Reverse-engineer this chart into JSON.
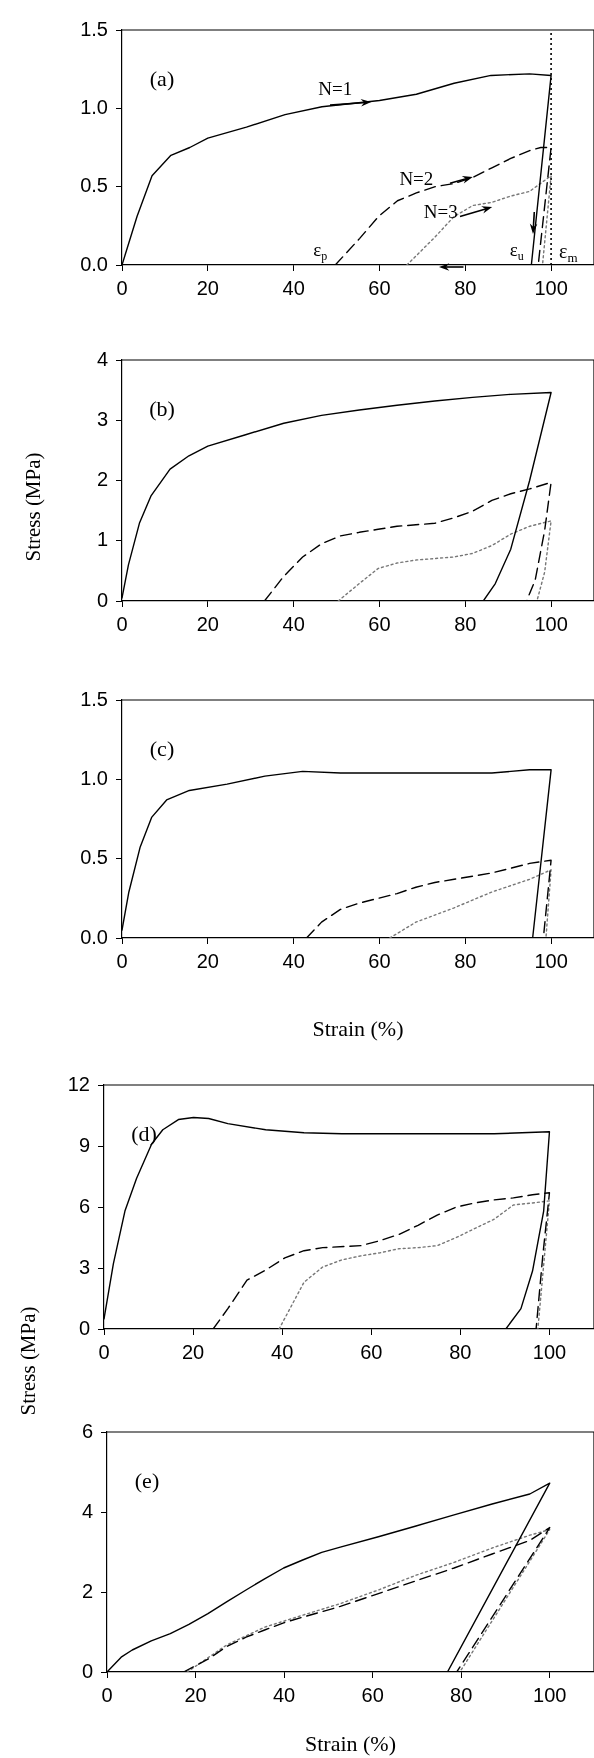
{
  "chart_data": [
    {
      "type": "line",
      "title": "(a)",
      "xlim": [
        0,
        110
      ],
      "xticks": [
        0,
        20,
        40,
        60,
        80,
        100
      ],
      "ylim": [
        0,
        1.5
      ],
      "yticks": [
        {
          "value": 0,
          "label": "0.0"
        },
        {
          "value": 0.5,
          "label": "0.5"
        },
        {
          "value": 1,
          "label": "1.0"
        },
        {
          "value": 1.5,
          "label": "1.5"
        }
      ],
      "grid": false,
      "marker": "none",
      "series": [
        {
          "color": "#000000",
          "line_style": "solid",
          "x": [
            0,
            3.5,
            7,
            11.4,
            15.8,
            20,
            29,
            38,
            46.6,
            60,
            68.6,
            77.4,
            86,
            95,
            100,
            95.4
          ],
          "values": [
            0,
            0.31,
            0.57,
            0.7,
            0.75,
            0.81,
            0.88,
            0.96,
            1.01,
            1.05,
            1.09,
            1.16,
            1.21,
            1.22,
            1.21,
            0
          ]
        },
        {
          "color": "#000000",
          "line_style": "dashed",
          "x": [
            49.7,
            55.4,
            59.8,
            64.2,
            68.6,
            73,
            77.4,
            81.8,
            86.2,
            90.6,
            95,
            97.6,
            100,
            97
          ],
          "values": [
            0,
            0.17,
            0.31,
            0.41,
            0.46,
            0.5,
            0.52,
            0.56,
            0.62,
            0.68,
            0.73,
            0.75,
            0.75,
            0
          ]
        },
        {
          "color": "#777777",
          "line_style": "dotted",
          "x": [
            66.4,
            73,
            77.4,
            81.8,
            86.2,
            90.6,
            95,
            100,
            98
          ],
          "values": [
            0,
            0.18,
            0.31,
            0.38,
            0.4,
            0.44,
            0.47,
            0.57,
            0
          ]
        }
      ],
      "ref_lines": [
        {
          "axis": "x",
          "value": 100,
          "label": "ε$_{m}$",
          "line_style": "dotted"
        }
      ],
      "annotations": [
        "N=1",
        "N=2",
        "N=3",
        "ε$_{p}$",
        "ε$_{u}$"
      ]
    },
    {
      "type": "line",
      "title": "(b)",
      "ylabel": "Stress (MPa)",
      "xlim": [
        0,
        110
      ],
      "xticks": [
        0,
        20,
        40,
        60,
        80,
        100
      ],
      "ylim": [
        0,
        4
      ],
      "yticks": [
        0,
        1,
        2,
        3,
        4
      ],
      "grid": false,
      "marker": "none",
      "series": [
        {
          "color": "#000000",
          "line_style": "solid",
          "x": [
            0,
            1.5,
            4.1,
            6.8,
            11.2,
            15.6,
            20,
            28.8,
            37.7,
            46.5,
            55.3,
            64.1,
            72.9,
            81.7,
            90.6,
            100,
            95,
            90.6,
            87,
            84.2
          ],
          "values": [
            0.05,
            0.6,
            1.3,
            1.75,
            2.19,
            2.41,
            2.57,
            2.76,
            2.95,
            3.08,
            3.17,
            3.25,
            3.32,
            3.38,
            3.43,
            3.46,
            2,
            0.86,
            0.29,
            0
          ]
        },
        {
          "color": "#000000",
          "line_style": "dashed",
          "x": [
            33.2,
            37.7,
            42.1,
            46.5,
            50.9,
            55.3,
            59.7,
            64.1,
            72.9,
            77.3,
            81.7,
            86.2,
            90.6,
            95,
            100,
            98.5,
            96.3,
            94.3
          ],
          "values": [
            0,
            0.41,
            0.73,
            0.95,
            1.08,
            1.14,
            1.19,
            1.24,
            1.29,
            1.38,
            1.49,
            1.67,
            1.78,
            1.86,
            1.97,
            1.17,
            0.35,
            0
          ]
        },
        {
          "color": "#777777",
          "line_style": "dotted",
          "x": [
            50.4,
            55.3,
            59.7,
            64.1,
            68.5,
            77.3,
            81.7,
            86.2,
            90.6,
            95,
            100,
            98.5,
            96.7
          ],
          "values": [
            0,
            0.29,
            0.54,
            0.63,
            0.68,
            0.73,
            0.79,
            0.92,
            1.11,
            1.24,
            1.33,
            0.48,
            0
          ]
        }
      ]
    },
    {
      "type": "line",
      "title": "(c)",
      "xlabel": "Strain (%)",
      "xlim": [
        0,
        110
      ],
      "xticks": [
        0,
        20,
        40,
        60,
        80,
        100
      ],
      "ylim": [
        0,
        1.5
      ],
      "yticks": [
        {
          "value": 0,
          "label": "0.0"
        },
        {
          "value": 0.5,
          "label": "0.5"
        },
        {
          "value": 1,
          "label": "1.0"
        },
        {
          "value": 1.5,
          "label": "1.5"
        }
      ],
      "grid": false,
      "marker": "none",
      "series": [
        {
          "color": "#000000",
          "line_style": "solid",
          "x": [
            0,
            1.6,
            4.2,
            6.9,
            10.4,
            15.7,
            24.5,
            33.3,
            42.1,
            50.9,
            59.7,
            68.5,
            86.2,
            95,
            100,
            95.7
          ],
          "values": [
            0.05,
            0.29,
            0.57,
            0.76,
            0.87,
            0.93,
            0.97,
            1.02,
            1.05,
            1.04,
            1.04,
            1.04,
            1.04,
            1.06,
            1.06,
            0
          ]
        },
        {
          "color": "#000000",
          "line_style": "dashed",
          "x": [
            43,
            46.5,
            50.9,
            55.3,
            59.7,
            64.1,
            68.5,
            72.9,
            77.4,
            81.8,
            86.2,
            90.6,
            95,
            100,
            98.2
          ],
          "values": [
            0,
            0.1,
            0.18,
            0.22,
            0.25,
            0.28,
            0.32,
            0.35,
            0.37,
            0.39,
            0.41,
            0.44,
            0.47,
            0.49,
            0
          ]
        },
        {
          "color": "#777777",
          "line_style": "dotted",
          "x": [
            62.4,
            68.5,
            77.4,
            86.2,
            95,
            100,
            98.8
          ],
          "values": [
            0,
            0.1,
            0.19,
            0.29,
            0.37,
            0.43,
            0
          ]
        }
      ]
    },
    {
      "type": "line",
      "title": "(d)",
      "ylabel": "Stress (MPa)",
      "xlim": [
        0,
        110
      ],
      "xticks": [
        0,
        20,
        40,
        60,
        80,
        100
      ],
      "ylim": [
        0,
        12
      ],
      "yticks": [
        0,
        3,
        6,
        9,
        12
      ],
      "grid": false,
      "marker": "none",
      "series": [
        {
          "color": "#000000",
          "line_style": "solid",
          "x": [
            0,
            2.1,
            4.7,
            7.3,
            10.7,
            13.2,
            16.7,
            20.1,
            23.5,
            27.8,
            36.3,
            44.9,
            53.4,
            70.5,
            87.6,
            100,
            98.7,
            96.2,
            93.6,
            90.2
          ],
          "values": [
            0.5,
            3.2,
            5.8,
            7.4,
            9.1,
            9.8,
            10.3,
            10.4,
            10.35,
            10.1,
            9.8,
            9.65,
            9.6,
            9.6,
            9.6,
            9.7,
            5.8,
            2.85,
            1,
            0
          ]
        },
        {
          "color": "#000000",
          "line_style": "dashed",
          "x": [
            24.5,
            27.8,
            32.1,
            36.3,
            40.6,
            44.9,
            49.1,
            57.7,
            62,
            66.2,
            70.5,
            74.8,
            79.1,
            83.3,
            87.6,
            91.9,
            96.2,
            100,
            98.5,
            97
          ],
          "values": [
            0,
            1,
            2.4,
            2.9,
            3.5,
            3.85,
            4,
            4.1,
            4.35,
            4.65,
            5.1,
            5.6,
            6,
            6.2,
            6.35,
            6.45,
            6.6,
            6.7,
            3.6,
            0
          ]
        },
        {
          "color": "#777777",
          "line_style": "dotted",
          "x": [
            39.3,
            41.5,
            44.9,
            49.1,
            53.4,
            57.7,
            62,
            66.2,
            70.5,
            74.8,
            79.1,
            83.3,
            87.6,
            91.9,
            96.2,
            100,
            97.4
          ],
          "values": [
            0,
            0.9,
            2.3,
            3.05,
            3.4,
            3.6,
            3.75,
            3.95,
            4,
            4.1,
            4.5,
            4.95,
            5.4,
            6.1,
            6.2,
            6.3,
            0
          ]
        }
      ]
    },
    {
      "type": "line",
      "title": "(e)",
      "xlabel": "Strain (%)",
      "xlim": [
        0,
        110
      ],
      "xticks": [
        0,
        20,
        40,
        60,
        80,
        100
      ],
      "ylim": [
        0,
        6
      ],
      "yticks": [
        0,
        2,
        4,
        6
      ],
      "grid": false,
      "marker": "none",
      "series": [
        {
          "color": "#000000",
          "line_style": "solid",
          "x": [
            0,
            3.2,
            5.7,
            10,
            14.3,
            18.5,
            22.8,
            27.1,
            31.4,
            35.6,
            39.9,
            44.2,
            48.5,
            52.7,
            61.3,
            69.8,
            78.4,
            87,
            95.5,
            100,
            76.9
          ],
          "values": [
            0,
            0.37,
            0.55,
            0.78,
            0.96,
            1.19,
            1.46,
            1.76,
            2.05,
            2.33,
            2.6,
            2.8,
            2.99,
            3.12,
            3.38,
            3.65,
            3.93,
            4.2,
            4.45,
            4.72,
            0
          ]
        },
        {
          "color": "#000000",
          "line_style": "dashed",
          "x": [
            17.3,
            22.8,
            27.1,
            31.4,
            35.6,
            39.9,
            44.2,
            52.7,
            61.3,
            69.8,
            78.4,
            87,
            95.5,
            100,
            79
          ],
          "values": [
            0,
            0.32,
            0.64,
            0.87,
            1.05,
            1.23,
            1.37,
            1.64,
            1.96,
            2.28,
            2.6,
            2.95,
            3.29,
            3.61,
            0
          ]
        },
        {
          "color": "#777777",
          "line_style": "dotted",
          "x": [
            18.1,
            27.1,
            35.6,
            44.2,
            52.7,
            61.3,
            69.8,
            78.4,
            87,
            95.5,
            100,
            79.7
          ],
          "values": [
            0,
            0.68,
            1.12,
            1.42,
            1.71,
            2.05,
            2.42,
            2.74,
            3.1,
            3.42,
            3.56,
            0
          ]
        }
      ]
    }
  ]
}
